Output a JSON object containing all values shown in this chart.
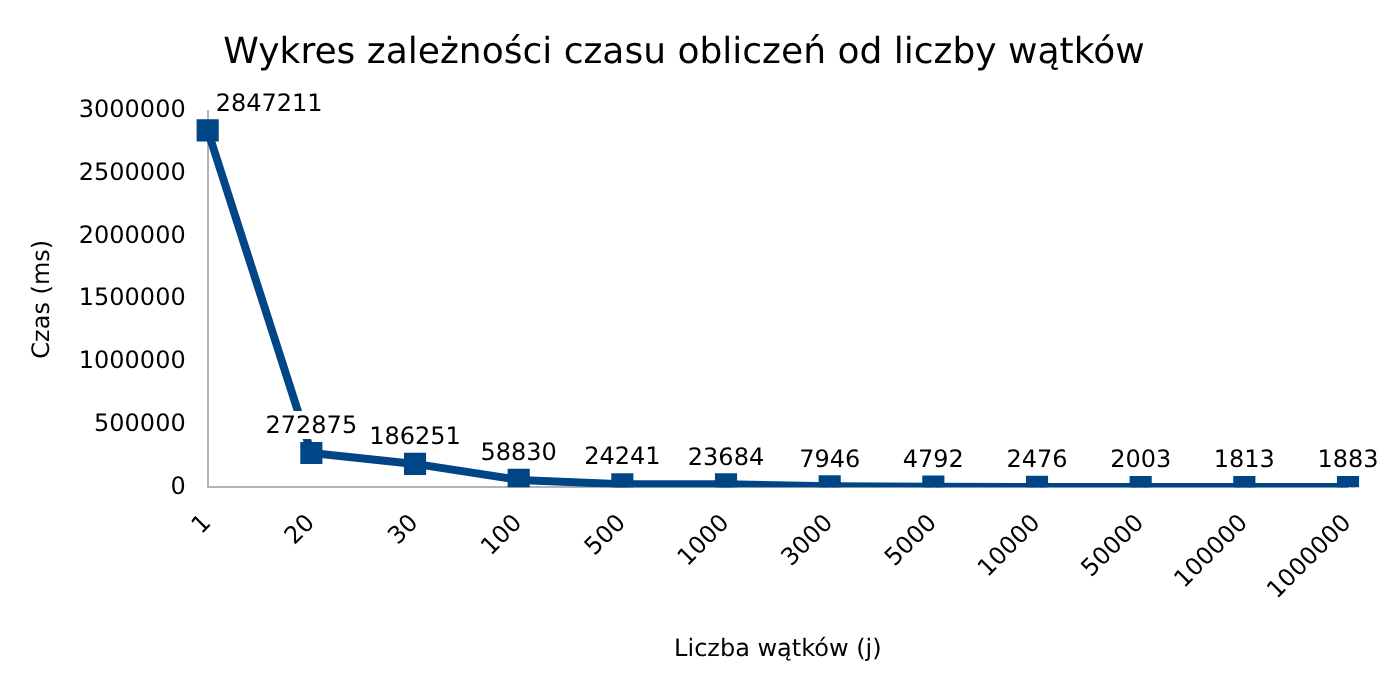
{
  "chart_data": {
    "type": "line",
    "title": "Wykres zależności czasu obliczeń od liczby wątków",
    "xlabel": "Liczba wątków (j)",
    "ylabel": "Czas (ms)",
    "categories": [
      "1",
      "20",
      "30",
      "100",
      "500",
      "1000",
      "3000",
      "5000",
      "10000",
      "50000",
      "100000",
      "1000000"
    ],
    "series": [
      {
        "color": "#004586",
        "values": [
          2847211,
          272875,
          186251,
          58830,
          24241,
          23684,
          7946,
          4792,
          2476,
          2003,
          1813,
          1883
        ]
      }
    ],
    "ylim": [
      0,
      3000000
    ],
    "yticks": [
      0,
      500000,
      1000000,
      1500000,
      2000000,
      2500000,
      3000000
    ],
    "grid": false,
    "legend": false,
    "marker": "square",
    "line_style": "solid",
    "data_labels": true
  }
}
